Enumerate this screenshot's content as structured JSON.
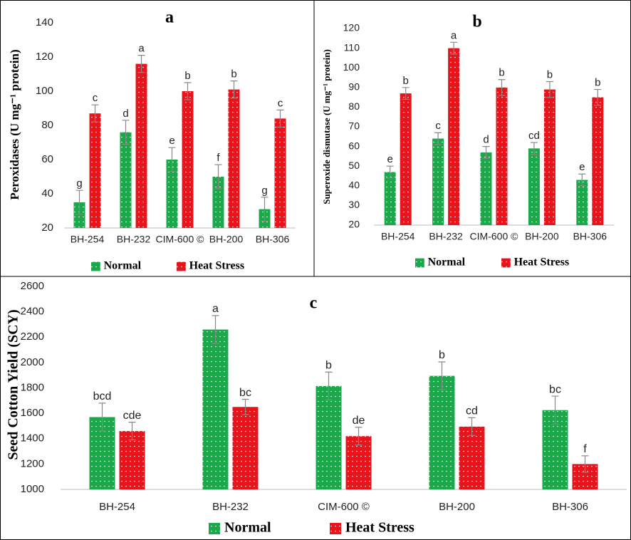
{
  "chart_data": [
    {
      "type": "bar",
      "title": "a",
      "y_label": "Peroxidases (U mg⁻¹ protein)",
      "categories": [
        "BH-254",
        "BH-232",
        "CIM-600 ©",
        "BH-200",
        "BH-306"
      ],
      "series": [
        {
          "name": "Normal",
          "color": "#1aa84a",
          "values": [
            35,
            76,
            60,
            50,
            31
          ],
          "errors": [
            7,
            7,
            7,
            7,
            7
          ],
          "labels": [
            "g",
            "d",
            "e",
            "f",
            "g"
          ]
        },
        {
          "name": "Heat Stress",
          "color": "#e8141b",
          "values": [
            87,
            116,
            100,
            101,
            84
          ],
          "errors": [
            5,
            5,
            5,
            5,
            5
          ],
          "labels": [
            "c",
            "a",
            "b",
            "b",
            "c"
          ]
        }
      ],
      "ylim": [
        20,
        140
      ],
      "yticks": [
        20,
        40,
        60,
        80,
        100,
        120,
        140
      ],
      "legend": "bottom"
    },
    {
      "type": "bar",
      "title": "b",
      "y_label": "Superoxide dismutase (U mg⁻¹ protein)",
      "categories": [
        "BH-254",
        "BH-232",
        "CIM-600 ©",
        "BH-200",
        "BH-306"
      ],
      "series": [
        {
          "name": "Normal",
          "color": "#1aa84a",
          "values": [
            47,
            64,
            57,
            59,
            43
          ],
          "errors": [
            3,
            3,
            3,
            3,
            3
          ],
          "labels": [
            "e",
            "c",
            "d",
            "cd",
            "e"
          ]
        },
        {
          "name": "Heat Stress",
          "color": "#e8141b",
          "values": [
            87,
            110,
            90,
            89,
            85
          ],
          "errors": [
            3,
            3,
            4,
            4,
            4
          ],
          "labels": [
            "b",
            "a",
            "b",
            "b",
            "b"
          ]
        }
      ],
      "ylim": [
        20,
        120
      ],
      "yticks": [
        20,
        30,
        40,
        50,
        60,
        70,
        80,
        90,
        100,
        110,
        120
      ],
      "legend": "bottom"
    },
    {
      "type": "bar",
      "title": "c",
      "y_label": "Seed Cotton Yield (SCY)",
      "categories": [
        "BH-254",
        "BH-232",
        "CIM-600 ©",
        "BH-200",
        "BH-306"
      ],
      "series": [
        {
          "name": "Normal",
          "color": "#1aa84a",
          "values": [
            1570,
            2260,
            1815,
            1895,
            1625
          ],
          "errors": [
            110,
            110,
            110,
            110,
            110
          ],
          "labels": [
            "bcd",
            "a",
            "b",
            "b",
            "bc"
          ]
        },
        {
          "name": "Heat Stress",
          "color": "#e8141b",
          "values": [
            1460,
            1650,
            1420,
            1495,
            1200
          ],
          "errors": [
            70,
            60,
            70,
            70,
            65
          ],
          "labels": [
            "cde",
            "bc",
            "de",
            "cd",
            "f"
          ]
        }
      ],
      "ylim": [
        1000,
        2600
      ],
      "yticks": [
        1000,
        1200,
        1400,
        1600,
        1800,
        2000,
        2200,
        2400,
        2600
      ],
      "legend": "bottom"
    }
  ]
}
